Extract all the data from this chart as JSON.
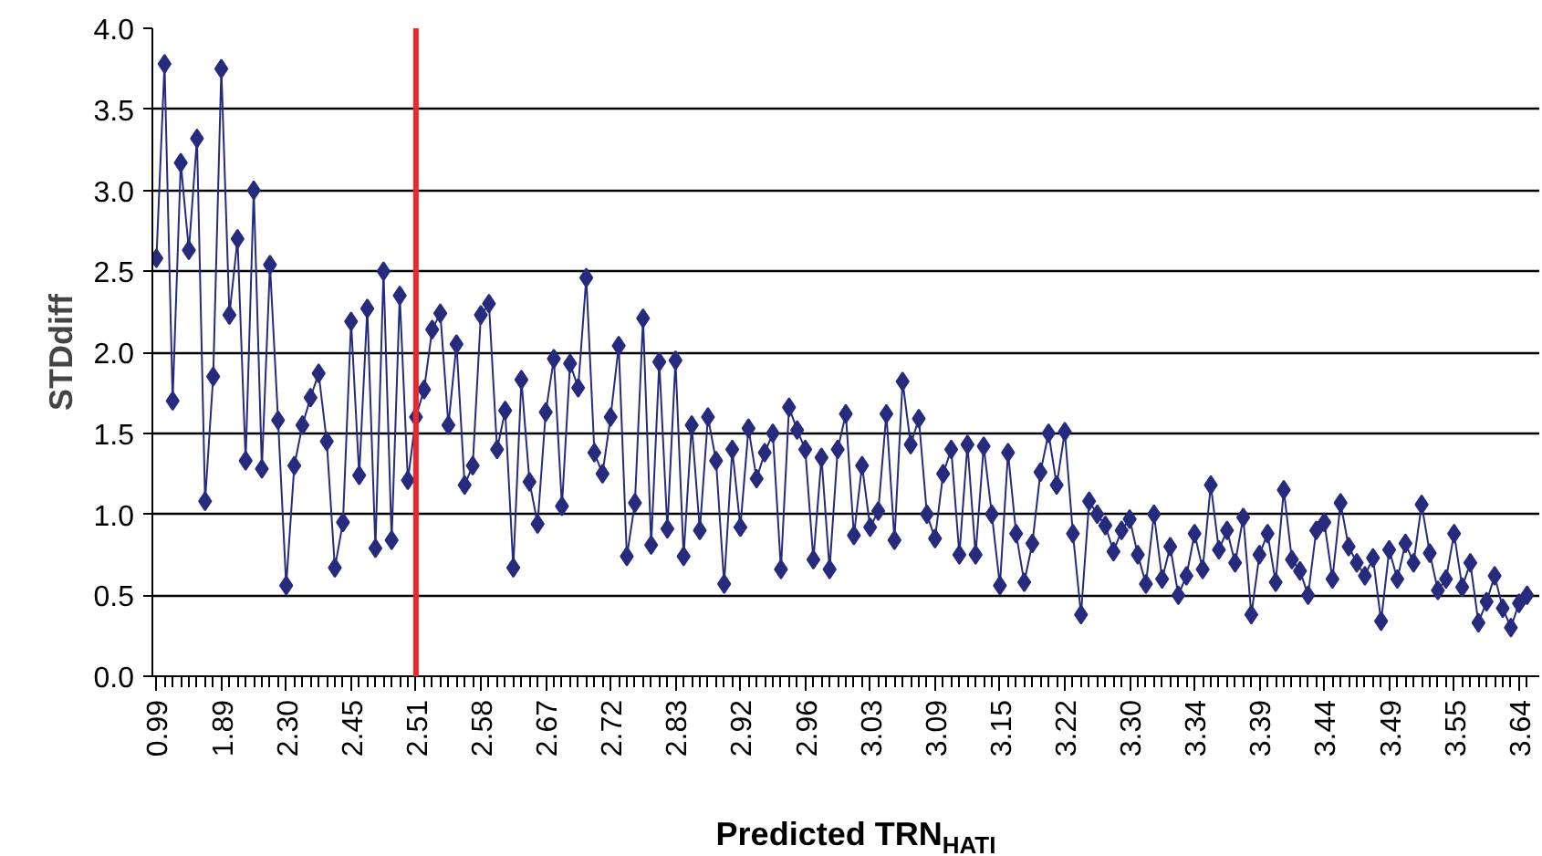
{
  "chart_data": {
    "type": "line",
    "xlabel": "Predicted TRN$_{HATI}$",
    "ylabel": "STDdiff",
    "categories": [
      "0.99",
      null,
      null,
      null,
      null,
      null,
      null,
      null,
      "1.89",
      null,
      null,
      null,
      null,
      null,
      null,
      null,
      "2.30",
      null,
      null,
      null,
      null,
      null,
      null,
      null,
      "2.45",
      null,
      null,
      null,
      null,
      null,
      null,
      null,
      "2.51",
      null,
      null,
      null,
      null,
      null,
      null,
      null,
      "2.58",
      null,
      null,
      null,
      null,
      null,
      null,
      null,
      "2.67",
      null,
      null,
      null,
      null,
      null,
      null,
      null,
      "2.72",
      null,
      null,
      null,
      null,
      null,
      null,
      null,
      "2.83",
      null,
      null,
      null,
      null,
      null,
      null,
      null,
      "2.92",
      null,
      null,
      null,
      null,
      null,
      null,
      null,
      "2.96",
      null,
      null,
      null,
      null,
      null,
      null,
      null,
      "3.03",
      null,
      null,
      null,
      null,
      null,
      null,
      null,
      "3.09",
      null,
      null,
      null,
      null,
      null,
      null,
      null,
      "3.15",
      null,
      null,
      null,
      null,
      null,
      null,
      null,
      "3.22",
      null,
      null,
      null,
      null,
      null,
      null,
      null,
      "3.30",
      null,
      null,
      null,
      null,
      null,
      null,
      null,
      "3.34",
      null,
      null,
      null,
      null,
      null,
      null,
      null,
      "3.39",
      null,
      null,
      null,
      null,
      null,
      null,
      null,
      "3.44",
      null,
      null,
      null,
      null,
      null,
      null,
      null,
      "3.49",
      null,
      null,
      null,
      null,
      null,
      null,
      null,
      "3.55",
      null,
      null,
      null,
      null,
      null,
      null,
      null,
      "3.64",
      null
    ],
    "series": [
      {
        "color": "#262b7d",
        "values": [
          2.58,
          3.78,
          1.7,
          3.17,
          2.63,
          3.32,
          1.08,
          1.85,
          3.75,
          2.23,
          2.7,
          1.33,
          3.0,
          1.28,
          2.54,
          1.58,
          0.56,
          1.3,
          1.55,
          1.72,
          1.87,
          1.45,
          0.67,
          0.95,
          2.19,
          1.24,
          2.27,
          0.79,
          2.5,
          0.84,
          2.35,
          1.21,
          1.6,
          1.77,
          2.14,
          2.24,
          1.55,
          2.05,
          1.18,
          1.3,
          2.23,
          2.3,
          1.4,
          1.64,
          0.67,
          1.83,
          1.2,
          0.94,
          1.63,
          1.96,
          1.05,
          1.93,
          1.78,
          2.46,
          1.38,
          1.25,
          1.6,
          2.04,
          0.74,
          1.07,
          2.21,
          0.81,
          1.94,
          0.91,
          1.95,
          0.74,
          1.55,
          0.9,
          1.6,
          1.33,
          0.57,
          1.4,
          0.92,
          1.53,
          1.22,
          1.38,
          1.5,
          0.66,
          1.66,
          1.52,
          1.4,
          0.72,
          1.35,
          0.66,
          1.4,
          1.62,
          0.87,
          1.3,
          0.92,
          1.02,
          1.62,
          0.84,
          1.82,
          1.43,
          1.59,
          1.0,
          0.85,
          1.25,
          1.4,
          0.75,
          1.43,
          0.75,
          1.42,
          1.0,
          0.56,
          1.38,
          0.88,
          0.58,
          0.82,
          1.26,
          1.5,
          1.18,
          1.51,
          0.88,
          0.38,
          1.08,
          1.0,
          0.93,
          0.77,
          0.9,
          0.97,
          0.75,
          0.57,
          1.0,
          0.6,
          0.8,
          0.5,
          0.62,
          0.88,
          0.66,
          1.18,
          0.78,
          0.9,
          0.7,
          0.98,
          0.38,
          0.75,
          0.88,
          0.58,
          1.15,
          0.72,
          0.65,
          0.5,
          0.9,
          0.95,
          0.6,
          1.07,
          0.8,
          0.7,
          0.62,
          0.73,
          0.34,
          0.78,
          0.6,
          0.82,
          0.7,
          1.06,
          0.76,
          0.53,
          0.6,
          0.88,
          0.55,
          0.7,
          0.33,
          0.46,
          0.62,
          0.42,
          0.3,
          0.45,
          0.5
        ]
      }
    ],
    "ylim": [
      0,
      4
    ],
    "yticks": [
      {
        "value": 0,
        "label": "0.0"
      },
      {
        "value": 0.5,
        "label": "0.5"
      },
      {
        "value": 1,
        "label": "1.0"
      },
      {
        "value": 1.5,
        "label": "1.5"
      },
      {
        "value": 2,
        "label": "2.0"
      },
      {
        "value": 2.5,
        "label": "2.5"
      },
      {
        "value": 3,
        "label": "3.0"
      },
      {
        "value": 3.5,
        "label": "3.5"
      },
      {
        "value": 4,
        "label": "4.0"
      }
    ],
    "grid": "y",
    "marker": "diamond",
    "line_style": "solid",
    "ref_lines": [
      {
        "axis": "x",
        "value": "2.51",
        "label": null,
        "color": "#e8282e"
      }
    ]
  }
}
